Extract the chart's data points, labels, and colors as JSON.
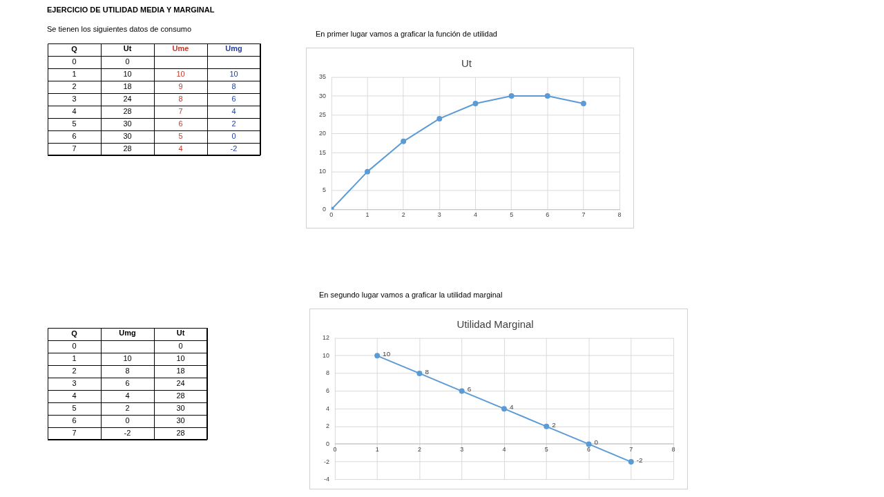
{
  "chart_data": [
    {
      "type": "heatmap",
      "title": "EJERCICIO DE UTILIDAD MEDIA Y MARGINAL",
      "subtitle": "Se tienen los siguientes datos de consumo",
      "ylabel": "Q",
      "data_labels": true,
      "categories": [
        "Ut",
        "Ume",
        "Umg"
      ],
      "colors": [
        "#000000",
        "#c0392b",
        "#1f3fa0"
      ],
      "y_categories": [
        "0",
        "1",
        "2",
        "3",
        "4",
        "5",
        "6",
        "7"
      ],
      "cells": [
        [
          0,
          null,
          null
        ],
        [
          10,
          10,
          10
        ],
        [
          18,
          9,
          8
        ],
        [
          24,
          8,
          6
        ],
        [
          28,
          7,
          4
        ],
        [
          30,
          6,
          2
        ],
        [
          30,
          5,
          0
        ],
        [
          28,
          4,
          -2
        ]
      ]
    },
    {
      "type": "line",
      "title": "Ut",
      "subtitle": "En primer lugar vamos a graficar la función de utilidad",
      "x": [
        0,
        1,
        2,
        3,
        4,
        5,
        6,
        7
      ],
      "values": [
        0,
        10,
        18,
        24,
        28,
        30,
        30,
        28
      ],
      "color": "#5b9bd5",
      "marker": "circle",
      "xlim": [
        0,
        8
      ],
      "xticks": [
        0,
        1,
        2,
        3,
        4,
        5,
        6,
        7,
        8
      ],
      "ylim": [
        0,
        35
      ],
      "yticks": [
        0,
        5,
        10,
        15,
        20,
        25,
        30,
        35
      ],
      "grid": true
    },
    {
      "type": "heatmap",
      "ylabel": "Q",
      "data_labels": true,
      "categories": [
        "Umg",
        "Ut"
      ],
      "colors": [
        "#000000",
        "#000000"
      ],
      "y_categories": [
        "0",
        "1",
        "2",
        "3",
        "4",
        "5",
        "6",
        "7"
      ],
      "cells": [
        [
          null,
          0
        ],
        [
          10,
          10
        ],
        [
          8,
          18
        ],
        [
          6,
          24
        ],
        [
          4,
          28
        ],
        [
          2,
          30
        ],
        [
          0,
          30
        ],
        [
          -2,
          28
        ]
      ]
    },
    {
      "type": "line",
      "title": "Utilidad Marginal",
      "subtitle": "En segundo lugar vamos a graficar la utilidad marginal",
      "x": [
        1,
        2,
        3,
        4,
        5,
        6,
        7
      ],
      "values": [
        10,
        8,
        6,
        4,
        2,
        0,
        -2
      ],
      "color": "#5b9bd5",
      "marker": "circle",
      "data_labels": true,
      "xlim": [
        0,
        8
      ],
      "xticks": [
        0,
        1,
        2,
        3,
        4,
        5,
        6,
        7,
        8
      ],
      "ylim": [
        -4,
        12
      ],
      "yticks": [
        -4,
        -2,
        0,
        2,
        4,
        6,
        8,
        10,
        12
      ],
      "grid": true
    }
  ]
}
